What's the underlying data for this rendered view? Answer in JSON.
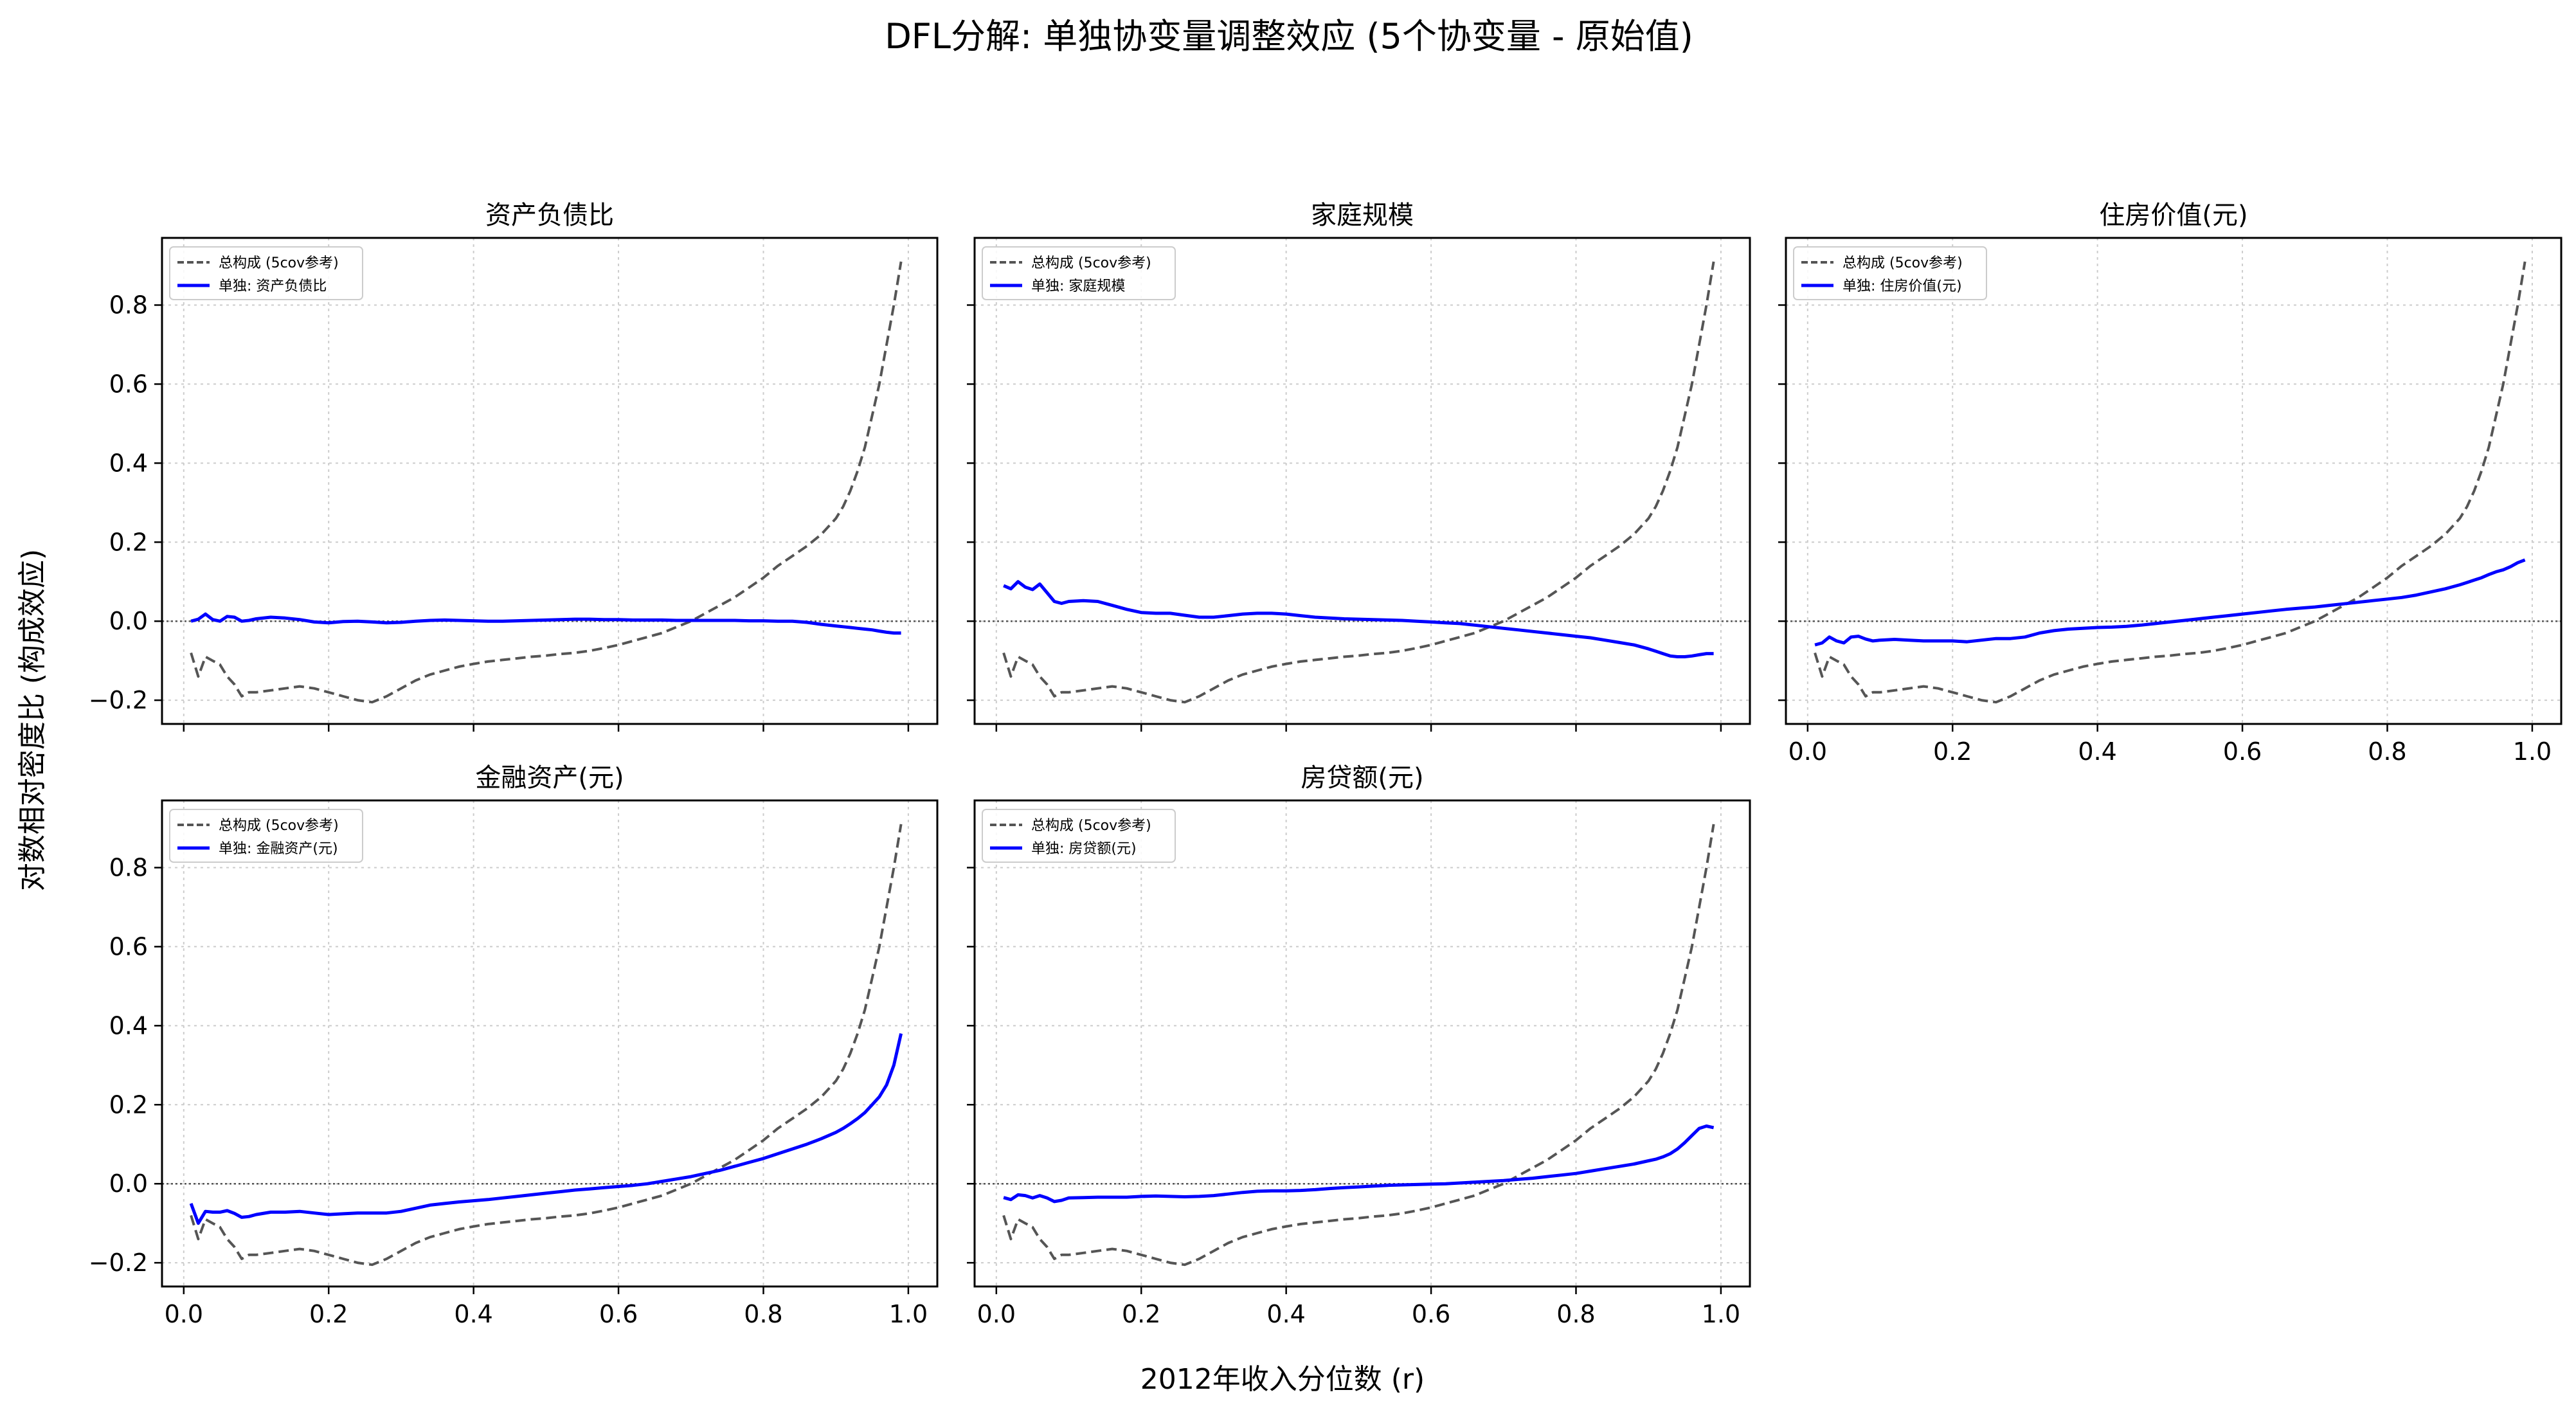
{
  "figure": {
    "title": "DFL分解: 单独协变量调整效应 (5个协变量 - 原始值)",
    "xlabel": "2012年收入分位数 (r)",
    "ylabel": "对数相对密度比 (构成效应)"
  },
  "colors": {
    "reference": "#555555",
    "single": "#0000ff",
    "zero_line": "#555555",
    "grid": "#cccccc"
  },
  "chart_data": [
    {
      "type": "line",
      "title": "资产负债比",
      "x": [
        0.01,
        0.02,
        0.03,
        0.04,
        0.05,
        0.06,
        0.07,
        0.08,
        0.09,
        0.1,
        0.12,
        0.14,
        0.16,
        0.18,
        0.2,
        0.22,
        0.24,
        0.26,
        0.28,
        0.3,
        0.32,
        0.34,
        0.36,
        0.38,
        0.4,
        0.42,
        0.44,
        0.46,
        0.48,
        0.5,
        0.52,
        0.54,
        0.56,
        0.58,
        0.6,
        0.62,
        0.64,
        0.66,
        0.68,
        0.7,
        0.72,
        0.74,
        0.76,
        0.78,
        0.8,
        0.82,
        0.84,
        0.86,
        0.88,
        0.9,
        0.91,
        0.92,
        0.93,
        0.94,
        0.95,
        0.96,
        0.97,
        0.98,
        0.99
      ],
      "xlim": [
        -0.03,
        1.04
      ],
      "ylim": [
        -0.26,
        0.97
      ],
      "xticks": [
        "0.0",
        "0.2",
        "0.4",
        "0.6",
        "0.8",
        "1.0"
      ],
      "yticks": [
        "−0.2",
        "0.0",
        "0.2",
        "0.4",
        "0.6",
        "0.8"
      ],
      "legend_position": "top-left",
      "series": [
        {
          "name": "总构成 (5cov参考)",
          "style": "dashed",
          "values": [
            -0.08,
            -0.14,
            -0.09,
            -0.1,
            -0.11,
            -0.14,
            -0.16,
            -0.19,
            -0.18,
            -0.18,
            -0.175,
            -0.17,
            -0.165,
            -0.17,
            -0.18,
            -0.19,
            -0.2,
            -0.205,
            -0.19,
            -0.17,
            -0.15,
            -0.135,
            -0.125,
            -0.115,
            -0.108,
            -0.102,
            -0.098,
            -0.094,
            -0.09,
            -0.087,
            -0.083,
            -0.08,
            -0.075,
            -0.068,
            -0.06,
            -0.05,
            -0.04,
            -0.03,
            -0.015,
            0.0,
            0.02,
            0.04,
            0.06,
            0.085,
            0.11,
            0.14,
            0.165,
            0.19,
            0.22,
            0.26,
            0.29,
            0.33,
            0.38,
            0.44,
            0.52,
            0.6,
            0.7,
            0.8,
            0.91
          ]
        },
        {
          "name": "单独: 资产负债比",
          "style": "solid",
          "values": [
            0.0,
            0.005,
            0.018,
            0.004,
            0.0,
            0.012,
            0.01,
            0.0,
            0.002,
            0.006,
            0.01,
            0.008,
            0.004,
            -0.002,
            -0.004,
            -0.001,
            0.0,
            -0.002,
            -0.004,
            -0.003,
            0.0,
            0.002,
            0.003,
            0.002,
            0.001,
            0.0,
            0.0,
            0.001,
            0.002,
            0.003,
            0.004,
            0.005,
            0.005,
            0.004,
            0.004,
            0.003,
            0.003,
            0.003,
            0.002,
            0.002,
            0.002,
            0.002,
            0.002,
            0.001,
            0.001,
            0.0,
            0.0,
            -0.003,
            -0.008,
            -0.012,
            -0.014,
            -0.016,
            -0.018,
            -0.02,
            -0.022,
            -0.025,
            -0.028,
            -0.03,
            -0.03
          ]
        }
      ]
    },
    {
      "type": "line",
      "title": "家庭规模",
      "x": [
        0.01,
        0.02,
        0.03,
        0.04,
        0.05,
        0.06,
        0.07,
        0.08,
        0.09,
        0.1,
        0.12,
        0.14,
        0.16,
        0.18,
        0.2,
        0.22,
        0.24,
        0.26,
        0.28,
        0.3,
        0.32,
        0.34,
        0.36,
        0.38,
        0.4,
        0.42,
        0.44,
        0.46,
        0.48,
        0.5,
        0.52,
        0.54,
        0.56,
        0.58,
        0.6,
        0.62,
        0.64,
        0.66,
        0.68,
        0.7,
        0.72,
        0.74,
        0.76,
        0.78,
        0.8,
        0.82,
        0.84,
        0.86,
        0.88,
        0.9,
        0.91,
        0.92,
        0.93,
        0.94,
        0.95,
        0.96,
        0.97,
        0.98,
        0.99
      ],
      "xlim": [
        -0.03,
        1.04
      ],
      "ylim": [
        -0.26,
        0.97
      ],
      "xticks": [
        "0.0",
        "0.2",
        "0.4",
        "0.6",
        "0.8",
        "1.0"
      ],
      "yticks": [
        "−0.2",
        "0.0",
        "0.2",
        "0.4",
        "0.6",
        "0.8"
      ],
      "legend_position": "top-left",
      "series": [
        {
          "name": "总构成 (5cov参考)",
          "style": "dashed",
          "values": [
            -0.08,
            -0.14,
            -0.09,
            -0.1,
            -0.11,
            -0.14,
            -0.16,
            -0.19,
            -0.18,
            -0.18,
            -0.175,
            -0.17,
            -0.165,
            -0.17,
            -0.18,
            -0.19,
            -0.2,
            -0.205,
            -0.19,
            -0.17,
            -0.15,
            -0.135,
            -0.125,
            -0.115,
            -0.108,
            -0.102,
            -0.098,
            -0.094,
            -0.09,
            -0.087,
            -0.083,
            -0.08,
            -0.075,
            -0.068,
            -0.06,
            -0.05,
            -0.04,
            -0.03,
            -0.015,
            0.0,
            0.02,
            0.04,
            0.06,
            0.085,
            0.11,
            0.14,
            0.165,
            0.19,
            0.22,
            0.26,
            0.29,
            0.33,
            0.38,
            0.44,
            0.52,
            0.6,
            0.7,
            0.8,
            0.91
          ]
        },
        {
          "name": "单独: 家庭规模",
          "style": "solid",
          "values": [
            0.09,
            0.082,
            0.1,
            0.086,
            0.08,
            0.094,
            0.072,
            0.05,
            0.045,
            0.05,
            0.052,
            0.05,
            0.04,
            0.03,
            0.022,
            0.02,
            0.02,
            0.015,
            0.01,
            0.01,
            0.014,
            0.018,
            0.02,
            0.02,
            0.018,
            0.014,
            0.01,
            0.008,
            0.006,
            0.005,
            0.004,
            0.003,
            0.002,
            0.0,
            -0.002,
            -0.004,
            -0.006,
            -0.01,
            -0.014,
            -0.018,
            -0.022,
            -0.026,
            -0.03,
            -0.034,
            -0.038,
            -0.042,
            -0.048,
            -0.054,
            -0.06,
            -0.07,
            -0.076,
            -0.082,
            -0.088,
            -0.09,
            -0.09,
            -0.088,
            -0.085,
            -0.082,
            -0.082
          ]
        }
      ]
    },
    {
      "type": "line",
      "title": "住房价值(元)",
      "x": [
        0.01,
        0.02,
        0.03,
        0.04,
        0.05,
        0.06,
        0.07,
        0.08,
        0.09,
        0.1,
        0.12,
        0.14,
        0.16,
        0.18,
        0.2,
        0.22,
        0.24,
        0.26,
        0.28,
        0.3,
        0.32,
        0.34,
        0.36,
        0.38,
        0.4,
        0.42,
        0.44,
        0.46,
        0.48,
        0.5,
        0.52,
        0.54,
        0.56,
        0.58,
        0.6,
        0.62,
        0.64,
        0.66,
        0.68,
        0.7,
        0.72,
        0.74,
        0.76,
        0.78,
        0.8,
        0.82,
        0.84,
        0.86,
        0.88,
        0.9,
        0.91,
        0.92,
        0.93,
        0.94,
        0.95,
        0.96,
        0.97,
        0.98,
        0.99
      ],
      "xlim": [
        -0.03,
        1.04
      ],
      "ylim": [
        -0.26,
        0.97
      ],
      "xticks": [
        "0.0",
        "0.2",
        "0.4",
        "0.6",
        "0.8",
        "1.0"
      ],
      "yticks": [
        "−0.2",
        "0.0",
        "0.2",
        "0.4",
        "0.6",
        "0.8"
      ],
      "legend_position": "top-left",
      "series": [
        {
          "name": "总构成 (5cov参考)",
          "style": "dashed",
          "values": [
            -0.08,
            -0.14,
            -0.09,
            -0.1,
            -0.11,
            -0.14,
            -0.16,
            -0.19,
            -0.18,
            -0.18,
            -0.175,
            -0.17,
            -0.165,
            -0.17,
            -0.18,
            -0.19,
            -0.2,
            -0.205,
            -0.19,
            -0.17,
            -0.15,
            -0.135,
            -0.125,
            -0.115,
            -0.108,
            -0.102,
            -0.098,
            -0.094,
            -0.09,
            -0.087,
            -0.083,
            -0.08,
            -0.075,
            -0.068,
            -0.06,
            -0.05,
            -0.04,
            -0.03,
            -0.015,
            0.0,
            0.02,
            0.04,
            0.06,
            0.085,
            0.11,
            0.14,
            0.165,
            0.19,
            0.22,
            0.26,
            0.29,
            0.33,
            0.38,
            0.44,
            0.52,
            0.6,
            0.7,
            0.8,
            0.91
          ]
        },
        {
          "name": "单独: 住房价值(元)",
          "style": "solid",
          "values": [
            -0.06,
            -0.055,
            -0.04,
            -0.05,
            -0.055,
            -0.04,
            -0.038,
            -0.045,
            -0.05,
            -0.048,
            -0.046,
            -0.048,
            -0.05,
            -0.05,
            -0.05,
            -0.052,
            -0.048,
            -0.044,
            -0.044,
            -0.04,
            -0.03,
            -0.024,
            -0.02,
            -0.018,
            -0.016,
            -0.015,
            -0.013,
            -0.01,
            -0.006,
            -0.002,
            0.002,
            0.006,
            0.01,
            0.014,
            0.018,
            0.022,
            0.026,
            0.03,
            0.033,
            0.036,
            0.04,
            0.044,
            0.048,
            0.052,
            0.056,
            0.06,
            0.066,
            0.074,
            0.082,
            0.092,
            0.098,
            0.104,
            0.11,
            0.118,
            0.125,
            0.13,
            0.138,
            0.148,
            0.155
          ]
        }
      ]
    },
    {
      "type": "line",
      "title": "金融资产(元)",
      "x": [
        0.01,
        0.02,
        0.03,
        0.04,
        0.05,
        0.06,
        0.07,
        0.08,
        0.09,
        0.1,
        0.12,
        0.14,
        0.16,
        0.18,
        0.2,
        0.22,
        0.24,
        0.26,
        0.28,
        0.3,
        0.32,
        0.34,
        0.36,
        0.38,
        0.4,
        0.42,
        0.44,
        0.46,
        0.48,
        0.5,
        0.52,
        0.54,
        0.56,
        0.58,
        0.6,
        0.62,
        0.64,
        0.66,
        0.68,
        0.7,
        0.72,
        0.74,
        0.76,
        0.78,
        0.8,
        0.82,
        0.84,
        0.86,
        0.88,
        0.9,
        0.91,
        0.92,
        0.93,
        0.94,
        0.95,
        0.96,
        0.97,
        0.98,
        0.99
      ],
      "xlim": [
        -0.03,
        1.04
      ],
      "ylim": [
        -0.26,
        0.97
      ],
      "xticks": [
        "0.0",
        "0.2",
        "0.4",
        "0.6",
        "0.8",
        "1.0"
      ],
      "yticks": [
        "−0.2",
        "0.0",
        "0.2",
        "0.4",
        "0.6",
        "0.8"
      ],
      "legend_position": "top-left",
      "series": [
        {
          "name": "总构成 (5cov参考)",
          "style": "dashed",
          "values": [
            -0.08,
            -0.14,
            -0.09,
            -0.1,
            -0.11,
            -0.14,
            -0.16,
            -0.19,
            -0.18,
            -0.18,
            -0.175,
            -0.17,
            -0.165,
            -0.17,
            -0.18,
            -0.19,
            -0.2,
            -0.205,
            -0.19,
            -0.17,
            -0.15,
            -0.135,
            -0.125,
            -0.115,
            -0.108,
            -0.102,
            -0.098,
            -0.094,
            -0.09,
            -0.087,
            -0.083,
            -0.08,
            -0.075,
            -0.068,
            -0.06,
            -0.05,
            -0.04,
            -0.03,
            -0.015,
            0.0,
            0.02,
            0.04,
            0.06,
            0.085,
            0.11,
            0.14,
            0.165,
            0.19,
            0.22,
            0.26,
            0.29,
            0.33,
            0.38,
            0.44,
            0.52,
            0.6,
            0.7,
            0.8,
            0.91
          ]
        },
        {
          "name": "单独: 金融资产(元)",
          "style": "solid",
          "values": [
            -0.05,
            -0.1,
            -0.07,
            -0.072,
            -0.072,
            -0.068,
            -0.075,
            -0.085,
            -0.083,
            -0.078,
            -0.072,
            -0.072,
            -0.07,
            -0.074,
            -0.078,
            -0.076,
            -0.074,
            -0.074,
            -0.074,
            -0.07,
            -0.062,
            -0.054,
            -0.05,
            -0.046,
            -0.043,
            -0.04,
            -0.036,
            -0.032,
            -0.028,
            -0.024,
            -0.02,
            -0.016,
            -0.013,
            -0.01,
            -0.007,
            -0.004,
            0.0,
            0.006,
            0.012,
            0.018,
            0.026,
            0.034,
            0.044,
            0.054,
            0.064,
            0.076,
            0.088,
            0.1,
            0.114,
            0.13,
            0.14,
            0.152,
            0.165,
            0.18,
            0.2,
            0.22,
            0.25,
            0.3,
            0.38
          ]
        }
      ]
    },
    {
      "type": "line",
      "title": "房贷额(元)",
      "x": [
        0.01,
        0.02,
        0.03,
        0.04,
        0.05,
        0.06,
        0.07,
        0.08,
        0.09,
        0.1,
        0.12,
        0.14,
        0.16,
        0.18,
        0.2,
        0.22,
        0.24,
        0.26,
        0.28,
        0.3,
        0.32,
        0.34,
        0.36,
        0.38,
        0.4,
        0.42,
        0.44,
        0.46,
        0.48,
        0.5,
        0.52,
        0.54,
        0.56,
        0.58,
        0.6,
        0.62,
        0.64,
        0.66,
        0.68,
        0.7,
        0.72,
        0.74,
        0.76,
        0.78,
        0.8,
        0.82,
        0.84,
        0.86,
        0.88,
        0.9,
        0.91,
        0.92,
        0.93,
        0.94,
        0.95,
        0.96,
        0.97,
        0.98,
        0.99
      ],
      "xlim": [
        -0.03,
        1.04
      ],
      "ylim": [
        -0.26,
        0.97
      ],
      "xticks": [
        "0.0",
        "0.2",
        "0.4",
        "0.6",
        "0.8",
        "1.0"
      ],
      "yticks": [
        "−0.2",
        "0.0",
        "0.2",
        "0.4",
        "0.6",
        "0.8"
      ],
      "legend_position": "top-left",
      "series": [
        {
          "name": "总构成 (5cov参考)",
          "style": "dashed",
          "values": [
            -0.08,
            -0.14,
            -0.09,
            -0.1,
            -0.11,
            -0.14,
            -0.16,
            -0.19,
            -0.18,
            -0.18,
            -0.175,
            -0.17,
            -0.165,
            -0.17,
            -0.18,
            -0.19,
            -0.2,
            -0.205,
            -0.19,
            -0.17,
            -0.15,
            -0.135,
            -0.125,
            -0.115,
            -0.108,
            -0.102,
            -0.098,
            -0.094,
            -0.09,
            -0.087,
            -0.083,
            -0.08,
            -0.075,
            -0.068,
            -0.06,
            -0.05,
            -0.04,
            -0.03,
            -0.015,
            0.0,
            0.02,
            0.04,
            0.06,
            0.085,
            0.11,
            0.14,
            0.165,
            0.19,
            0.22,
            0.26,
            0.29,
            0.33,
            0.38,
            0.44,
            0.52,
            0.6,
            0.7,
            0.8,
            0.91
          ]
        },
        {
          "name": "单独: 房贷额(元)",
          "style": "solid",
          "values": [
            -0.035,
            -0.04,
            -0.028,
            -0.03,
            -0.036,
            -0.03,
            -0.036,
            -0.045,
            -0.042,
            -0.036,
            -0.035,
            -0.034,
            -0.034,
            -0.034,
            -0.032,
            -0.031,
            -0.032,
            -0.033,
            -0.032,
            -0.03,
            -0.026,
            -0.022,
            -0.019,
            -0.018,
            -0.018,
            -0.017,
            -0.015,
            -0.012,
            -0.01,
            -0.008,
            -0.006,
            -0.004,
            -0.003,
            -0.002,
            -0.001,
            0.0,
            0.002,
            0.004,
            0.006,
            0.008,
            0.011,
            0.014,
            0.018,
            0.022,
            0.026,
            0.032,
            0.038,
            0.044,
            0.05,
            0.058,
            0.062,
            0.068,
            0.076,
            0.088,
            0.104,
            0.122,
            0.14,
            0.146,
            0.142
          ]
        }
      ]
    }
  ]
}
